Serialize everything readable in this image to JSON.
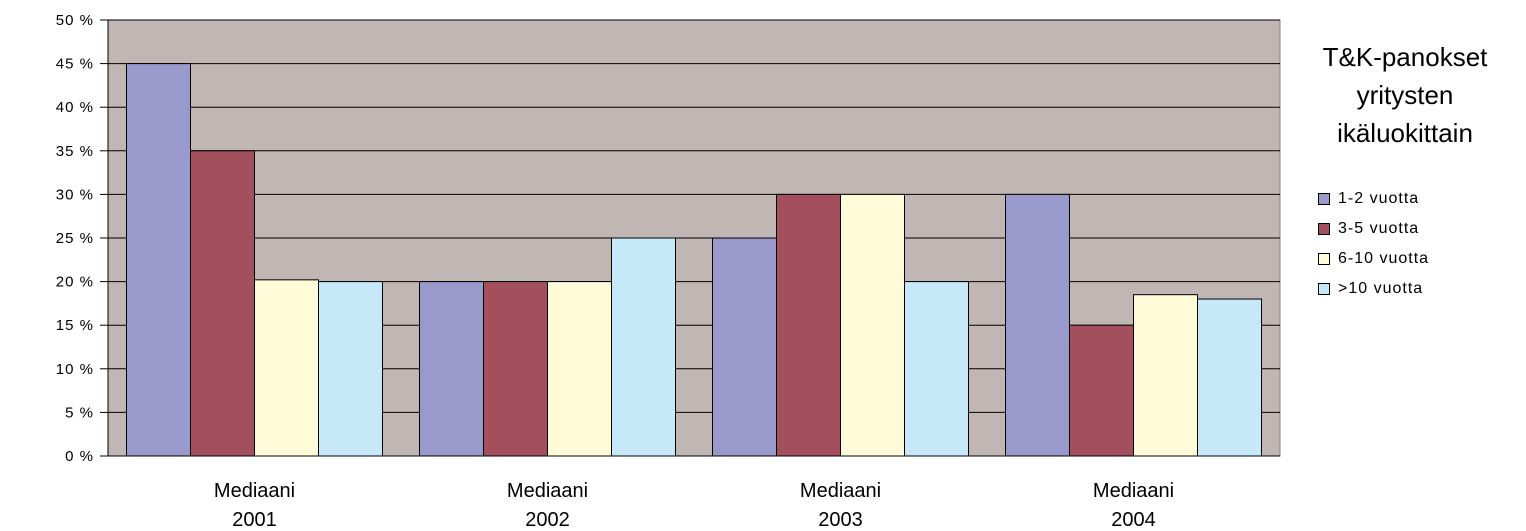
{
  "chart_data": {
    "type": "bar",
    "title": "T&K-panokset yritysten ikäluokittain",
    "categories": [
      [
        "Mediaani",
        "2001"
      ],
      [
        "Mediaani",
        "2002"
      ],
      [
        "Mediaani",
        "2003"
      ],
      [
        "Mediaani",
        "2004"
      ]
    ],
    "series": [
      {
        "name": "1-2 vuotta",
        "color": "#9999cc",
        "values": [
          45,
          20,
          25,
          30
        ]
      },
      {
        "name": "3-5 vuotta",
        "color": "#a34f5e",
        "values": [
          35,
          20,
          30,
          15
        ]
      },
      {
        "name": "6-10 vuotta",
        "color": "#fffbd9",
        "values": [
          20.2,
          20,
          30,
          18.5
        ]
      },
      {
        "name": ">10 vuotta",
        "color": "#c6e8f8",
        "values": [
          20,
          25,
          20,
          18
        ]
      }
    ],
    "yticks": [
      "0 %",
      "5 %",
      "10 %",
      "15 %",
      "20 %",
      "25 %",
      "30 %",
      "35 %",
      "40 %",
      "45 %",
      "50 %"
    ],
    "ylim": [
      0,
      50
    ],
    "ytick_step": 5,
    "grid": true,
    "plot_background": "#c0b6b3",
    "legend_position": "right"
  }
}
